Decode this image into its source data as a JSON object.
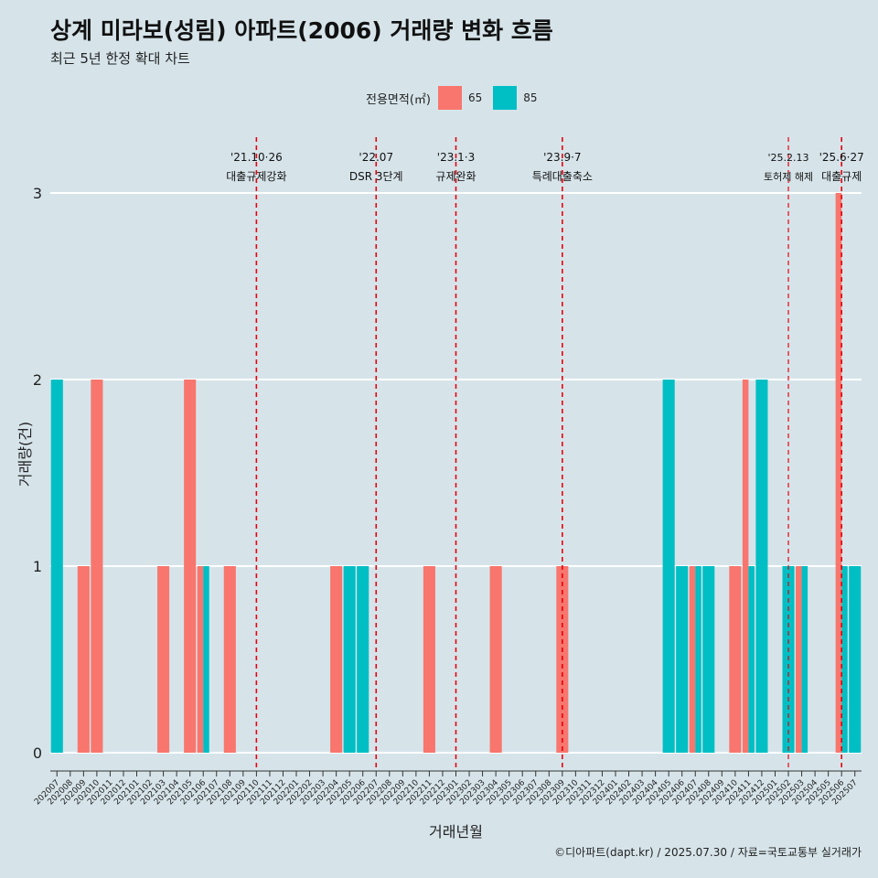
{
  "header": {
    "title": "상계 미라보(성림) 아파트(2006) 거래량 변화 흐름",
    "subtitle": "최근 5년 한정 확대 차트"
  },
  "legend": {
    "title": "전용면적(㎡)",
    "items": [
      {
        "label": "65",
        "color": "#f8766d"
      },
      {
        "label": "85",
        "color": "#00bfc4"
      }
    ]
  },
  "footer": {
    "credit": "©디아파트(dapt.kr) / 2025.07.30 / 자료=국토교통부 실거래가"
  },
  "chart_data": {
    "type": "bar",
    "stacking": "dodge",
    "xlabel": "거래년월",
    "ylabel": "거래량(건)",
    "ylim": [
      0,
      3
    ],
    "yticks": [
      0,
      1,
      2,
      3
    ],
    "grid": "horizontal major, white",
    "background": "#d6e4ea",
    "categories": [
      "202007",
      "202008",
      "202009",
      "202010",
      "202011",
      "202012",
      "202101",
      "202102",
      "202103",
      "202104",
      "202105",
      "202106",
      "202107",
      "202108",
      "202109",
      "202110",
      "202111",
      "202112",
      "202201",
      "202202",
      "202203",
      "202204",
      "202205",
      "202206",
      "202207",
      "202208",
      "202209",
      "202210",
      "202211",
      "202212",
      "202301",
      "202302",
      "202303",
      "202304",
      "202305",
      "202306",
      "202307",
      "202308",
      "202309",
      "202310",
      "202311",
      "202312",
      "202401",
      "202402",
      "202403",
      "202404",
      "202405",
      "202406",
      "202407",
      "202408",
      "202409",
      "202410",
      "202411",
      "202412",
      "202501",
      "202502",
      "202503",
      "202504",
      "202505",
      "202506",
      "202507"
    ],
    "series": [
      {
        "name": "65",
        "color": "#f8766d",
        "values": [
          0,
          0,
          1,
          2,
          0,
          0,
          0,
          0,
          1,
          0,
          2,
          1,
          0,
          1,
          0,
          0,
          0,
          0,
          0,
          0,
          0,
          1,
          0,
          0,
          0,
          0,
          0,
          0,
          1,
          0,
          0,
          0,
          0,
          1,
          0,
          0,
          0,
          0,
          1,
          0,
          0,
          0,
          0,
          0,
          0,
          0,
          0,
          0,
          1,
          0,
          0,
          1,
          2,
          0,
          0,
          0,
          1,
          0,
          0,
          3,
          0
        ]
      },
      {
        "name": "85",
        "color": "#00bfc4",
        "values": [
          2,
          0,
          0,
          0,
          0,
          0,
          0,
          0,
          0,
          0,
          0,
          1,
          0,
          0,
          0,
          0,
          0,
          0,
          0,
          0,
          0,
          0,
          1,
          1,
          0,
          0,
          0,
          0,
          0,
          0,
          0,
          0,
          0,
          0,
          0,
          0,
          0,
          0,
          0,
          0,
          0,
          0,
          0,
          0,
          0,
          0,
          2,
          1,
          1,
          1,
          0,
          0,
          1,
          2,
          0,
          1,
          1,
          0,
          0,
          1,
          1
        ]
      }
    ],
    "annotations": [
      {
        "category": "202110",
        "date": "'21.10·26",
        "text": "대출규제강화",
        "small": false
      },
      {
        "category": "202207",
        "date": "'22.07",
        "text": "DSR 3단계",
        "small": false
      },
      {
        "category": "202301",
        "date": "'23.1·3",
        "text": "규제완화",
        "small": false
      },
      {
        "category": "202309",
        "date": "'23.9·7",
        "text": "특례대출축소",
        "small": false
      },
      {
        "category": "202502",
        "date": "'25.2.13",
        "text": "토허제 해제",
        "small": true
      },
      {
        "category": "202506",
        "date": "'25.6·27",
        "text": "대출규제",
        "small": false
      }
    ]
  }
}
